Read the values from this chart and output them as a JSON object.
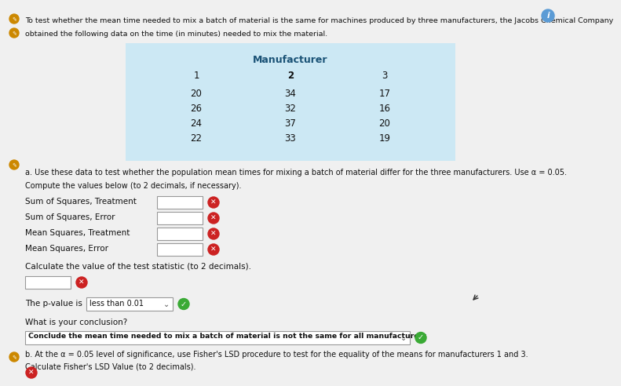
{
  "title_line1": "To test whether the mean time needed to mix a batch of material is the same for machines produced by three manufacturers, the Jacobs Chemical Company",
  "title_line2": "obtained the following data on the time (in minutes) needed to mix the material.",
  "table_header": "Manufacturer",
  "col_headers": [
    "1",
    "2",
    "3"
  ],
  "data_rows": [
    [
      "20",
      "34",
      "17"
    ],
    [
      "26",
      "32",
      "16"
    ],
    [
      "24",
      "37",
      "20"
    ],
    [
      "22",
      "33",
      "19"
    ]
  ],
  "part_a_text": "a. Use these data to test whether the population mean times for mixing a batch of material differ for the three manufacturers. Use α = 0.05.",
  "compute_text": "Compute the values below (to 2 decimals, if necessary).",
  "labels": [
    "Sum of Squares, Treatment",
    "Sum of Squares, Error",
    "Mean Squares, Treatment",
    "Mean Squares, Error"
  ],
  "calc_text": "Calculate the value of the test statistic (to 2 decimals).",
  "pvalue_label": "The p-value is",
  "pvalue_value": "less than 0.01",
  "conclusion_label": "What is your conclusion?",
  "conclusion_value": "Conclude the mean time needed to mix a batch of material is not the same for all manufacturers",
  "part_b_text": "b. At the α = 0.05 level of significance, use Fisher's LSD procedure to test for the equality of the means for manufacturers 1 and 3.",
  "lsd_text": "Calculate Fisher's LSD Value (to 2 decimals).",
  "table_bg": "#cce8f4",
  "page_bg": "#f0f0f0",
  "icon_green": "#3aaa35",
  "icon_red": "#cc2222",
  "left_bullet_color": "#dddddd",
  "pencil_color": "#cc8800"
}
